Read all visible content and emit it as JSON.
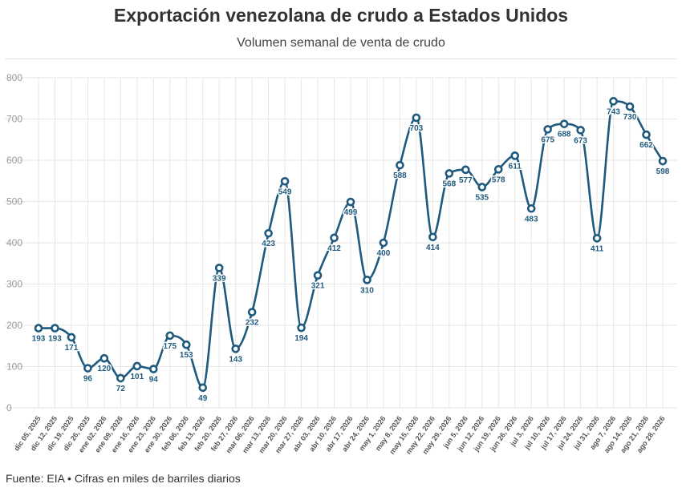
{
  "header": {
    "title": "Exportación venezolana de crudo a Estados Unidos",
    "subtitle": "Volumen semanal de venta de crudo"
  },
  "footer": {
    "source": "Fuente: EIA • Cifras en miles de barriles diarios"
  },
  "chart_data": {
    "type": "line",
    "title": "Exportación venezolana de crudo a Estados Unidos",
    "subtitle": "Volumen semanal de venta de crudo",
    "categories": [
      "dic 05, 2025",
      "dic 12, 2025",
      "dic 19, 2025",
      "dic 26, 2025",
      "ene 02, 2026",
      "ene 09, 2026",
      "ene 16, 2026",
      "ene 23, 2026",
      "ene 30, 2026",
      "feb 06, 2026",
      "feb 13, 2026",
      "feb 20, 2026",
      "feb 27, 2026",
      "mar 06, 2026",
      "mar 13, 2026",
      "mar 20, 2026",
      "mar 27, 2026",
      "abr 03, 2026",
      "abr 10, 2026",
      "abr 17, 2026",
      "abr 24, 2026",
      "may 1, 2026",
      "may 8, 2026",
      "may 15, 2026",
      "may 22, 2026",
      "may 29, 2026",
      "jun 5, 2026",
      "jun 12, 2026",
      "jun 19, 2026",
      "jun 26, 2026",
      "jul 3, 2026",
      "jul 10, 2026",
      "jul 17, 2026",
      "jul 24, 2026",
      "jul 31, 2026",
      "ago 7, 2026",
      "ago 14, 2026",
      "ago 21, 2026",
      "ago 28, 2026"
    ],
    "values": [
      193,
      193,
      171,
      96,
      120,
      72,
      101,
      94,
      175,
      153,
      49,
      339,
      143,
      232,
      423,
      549,
      194,
      321,
      412,
      499,
      310,
      400,
      588,
      703,
      414,
      568,
      577,
      535,
      578,
      611,
      483,
      675,
      688,
      673,
      411,
      743,
      730,
      662,
      598
    ],
    "ylim": [
      0,
      800
    ],
    "yticks": [
      0,
      100,
      200,
      300,
      400,
      500,
      600,
      700,
      800
    ],
    "grid": true,
    "line_color": "#1f5a7e",
    "marker_fill": "#ffffff",
    "grid_color": "#e6e6e6"
  }
}
